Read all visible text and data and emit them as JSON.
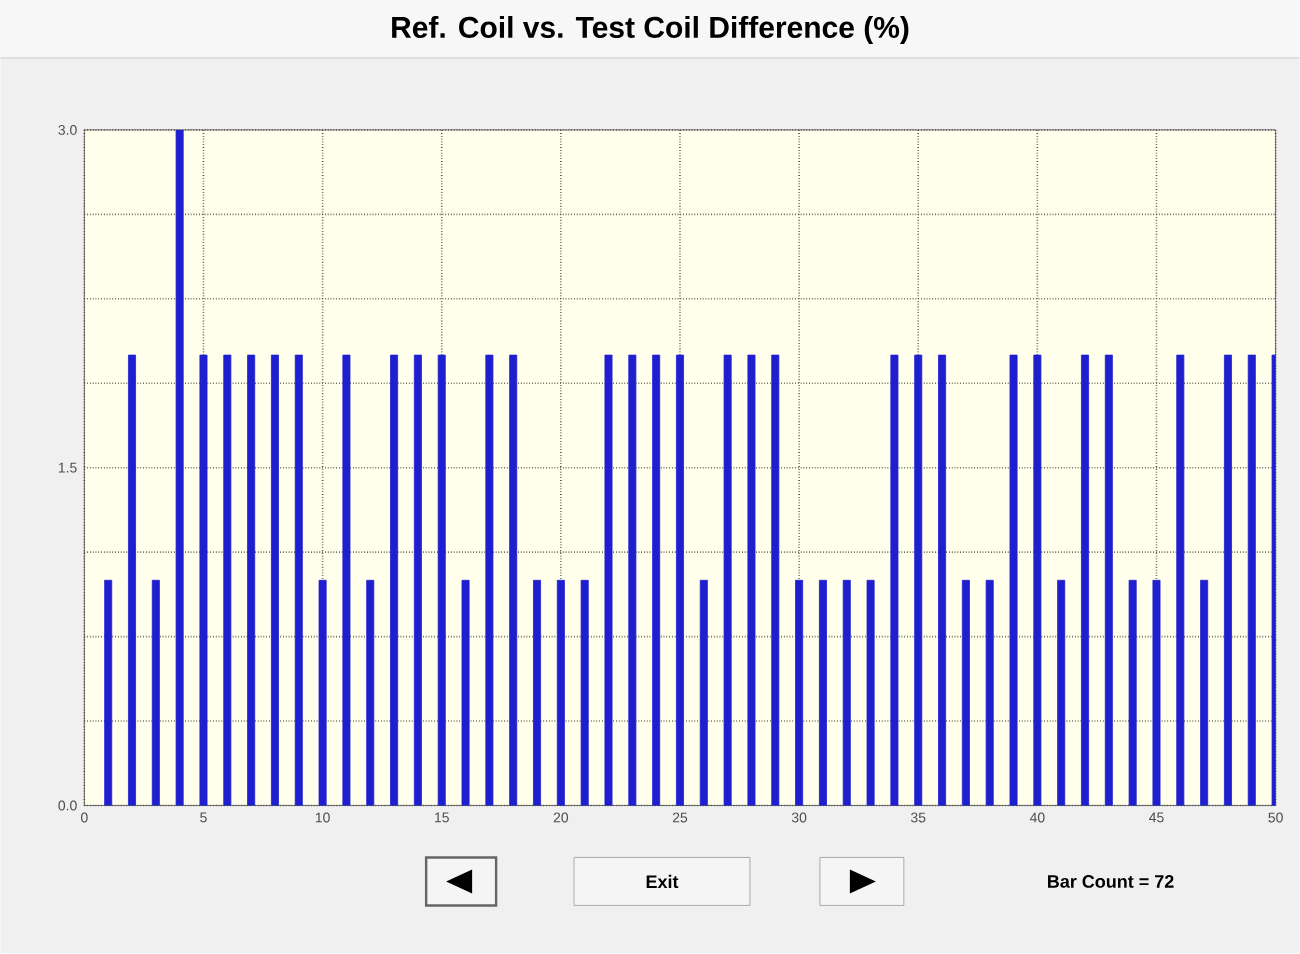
{
  "chart_data": {
    "type": "bar",
    "title": "Ref. Coil vs. Test Coil Difference (%)",
    "x": [
      1,
      2,
      3,
      4,
      5,
      6,
      7,
      8,
      9,
      10,
      11,
      12,
      13,
      14,
      15,
      16,
      17,
      18,
      19,
      20,
      21,
      22,
      23,
      24,
      25,
      26,
      27,
      28,
      29,
      30,
      31,
      32,
      33,
      34,
      35,
      36,
      37,
      38,
      39,
      40,
      41,
      42,
      43,
      44,
      45,
      46,
      47,
      48,
      49,
      50
    ],
    "values": [
      1,
      2,
      1,
      3,
      2,
      2,
      2,
      2,
      2,
      1,
      2,
      1,
      2,
      2,
      2,
      1,
      2,
      2,
      1,
      1,
      1,
      2,
      2,
      2,
      2,
      1,
      2,
      2,
      2,
      1,
      1,
      1,
      1,
      2,
      2,
      2,
      1,
      1,
      2,
      2,
      1,
      2,
      2,
      1,
      1,
      2,
      1,
      2,
      2,
      2
    ],
    "color": "#1f1fd0",
    "xlim": [
      0,
      50
    ],
    "xticks": [
      0,
      5,
      10,
      15,
      20,
      25,
      30,
      35,
      40,
      45,
      50
    ],
    "ylim": [
      0,
      3
    ],
    "yticks": [
      {
        "value": 0,
        "label": "0.0"
      },
      {
        "value": 0.375,
        "label": null
      },
      {
        "value": 0.75,
        "label": null
      },
      {
        "value": 1.125,
        "label": null
      },
      {
        "value": 1.5,
        "label": "1.5"
      },
      {
        "value": 1.875,
        "label": null
      },
      {
        "value": 2.25,
        "label": null
      },
      {
        "value": 2.625,
        "label": null
      },
      {
        "value": 3,
        "label": "3.0"
      }
    ],
    "grid": true,
    "annotations": [
      "Exit",
      "Bar Count =  72"
    ]
  }
}
